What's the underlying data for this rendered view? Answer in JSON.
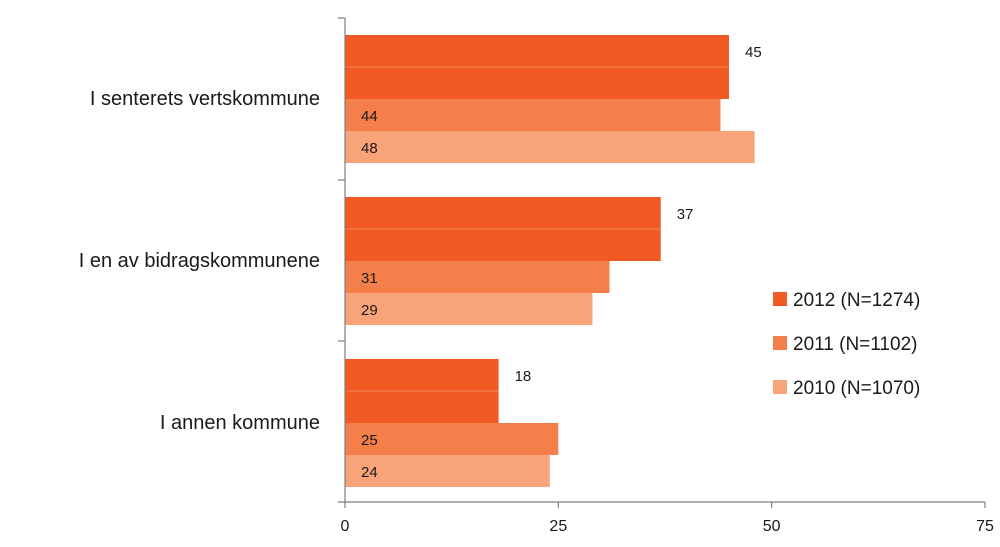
{
  "chart_data": {
    "type": "bar",
    "orientation": "horizontal",
    "categories": [
      "I senterets vertskommune",
      "I en av bidragskommunene",
      "I annen kommune"
    ],
    "series": [
      {
        "name": "2012 (N=1274)",
        "color": "#F15A22",
        "values": [
          45,
          37,
          18
        ]
      },
      {
        "name": "2011 (N=1102)",
        "color": "#F47F4B",
        "values": [
          44,
          31,
          25
        ]
      },
      {
        "name": "2010 (N=1070)",
        "color": "#F8A379",
        "values": [
          48,
          29,
          24
        ]
      }
    ],
    "xlim": [
      0,
      75
    ],
    "xticks": [
      "0",
      "25",
      "50",
      "75"
    ],
    "legend_position": "right",
    "grid": false
  }
}
